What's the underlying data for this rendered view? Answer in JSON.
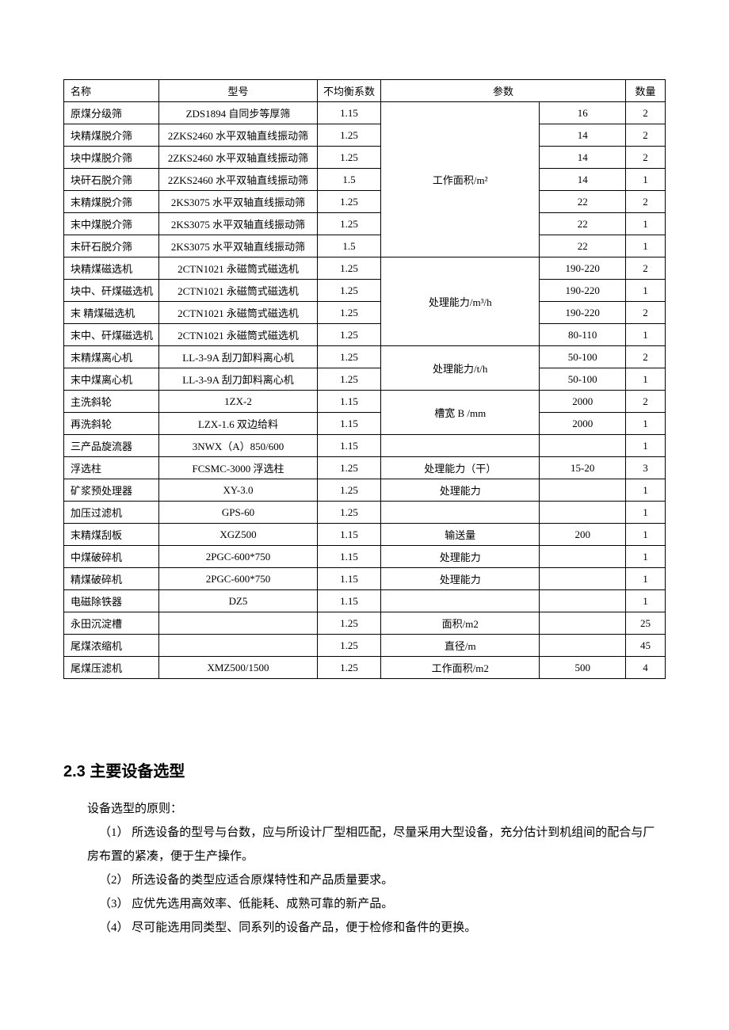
{
  "table": {
    "headers": [
      "名称",
      "型号",
      "不均衡系数",
      "参数",
      "数量"
    ],
    "param_labels": {
      "area": "工作面积/m²",
      "capacity_m3h": "处理能力/m³/h",
      "capacity_th": "处理能力/t/h",
      "width": "槽宽 B /mm",
      "capacity_dry": "处理能力（干）",
      "capacity": "处理能力",
      "transport": "输送量",
      "area_m2": "面积/m2",
      "diameter": "直径/m",
      "work_area": "工作面积/m2"
    },
    "rows": [
      {
        "name": "原煤分级筛",
        "model": "ZDS1894 自同步等厚筛",
        "coef": "1.15",
        "val": "16",
        "qty": "2",
        "pgroup": "area"
      },
      {
        "name": "块精煤脱介筛",
        "model": "2ZKS2460 水平双轴直线振动筛",
        "coef": "1.25",
        "val": "14",
        "qty": "2",
        "pgroup": "area"
      },
      {
        "name": "块中煤脱介筛",
        "model": "2ZKS2460 水平双轴直线振动筛",
        "coef": "1.25",
        "val": "14",
        "qty": "2",
        "pgroup": "area"
      },
      {
        "name": "块矸石脱介筛",
        "model": "2ZKS2460 水平双轴直线振动筛",
        "coef": "1.5",
        "val": "14",
        "qty": "1",
        "pgroup": "area"
      },
      {
        "name": "末精煤脱介筛",
        "model": "2KS3075 水平双轴直线振动筛",
        "coef": "1.25",
        "val": "22",
        "qty": "2",
        "pgroup": "area"
      },
      {
        "name": "末中煤脱介筛",
        "model": "2KS3075 水平双轴直线振动筛",
        "coef": "1.25",
        "val": "22",
        "qty": "1",
        "pgroup": "area"
      },
      {
        "name": "末矸石脱介筛",
        "model": "2KS3075 水平双轴直线振动筛",
        "coef": "1.5",
        "val": "22",
        "qty": "1",
        "pgroup": "area"
      },
      {
        "name": "块精煤磁选机",
        "model": "2CTN1021 永磁筒式磁选机",
        "coef": "1.25",
        "val": "190-220",
        "qty": "2",
        "pgroup": "capacity_m3h"
      },
      {
        "name": "块中、矸煤磁选机",
        "model": "2CTN1021 永磁筒式磁选机",
        "coef": "1.25",
        "val": "190-220",
        "qty": "1",
        "pgroup": "capacity_m3h"
      },
      {
        "name": "末 精煤磁选机",
        "model": "2CTN1021 永磁筒式磁选机",
        "coef": "1.25",
        "val": "190-220",
        "qty": "2",
        "pgroup": "capacity_m3h"
      },
      {
        "name": "末中、矸煤磁选机",
        "model": "2CTN1021 永磁筒式磁选机",
        "coef": "1.25",
        "val": "80-110",
        "qty": "1",
        "pgroup": "capacity_m3h"
      },
      {
        "name": "末精煤离心机",
        "model": "LL-3-9A 刮刀卸料离心机",
        "coef": "1.25",
        "val": "50-100",
        "qty": "2",
        "pgroup": "capacity_th"
      },
      {
        "name": "末中煤离心机",
        "model": "LL-3-9A 刮刀卸料离心机",
        "coef": "1.25",
        "val": "50-100",
        "qty": "1",
        "pgroup": "capacity_th"
      },
      {
        "name": "主洗斜轮",
        "model": "1ZX-2",
        "coef": "1.15",
        "val": "2000",
        "qty": "2",
        "pgroup": "width"
      },
      {
        "name": "再洗斜轮",
        "model": "LZX-1.6 双边给料",
        "coef": "1.15",
        "val": "2000",
        "qty": "1",
        "pgroup": "width"
      },
      {
        "name": "三产品旋流器",
        "model": "3NWX（A）850/600",
        "coef": "1.15",
        "val": "",
        "qty": "1",
        "param": ""
      },
      {
        "name": "浮选柱",
        "model": "FCSMC-3000 浮选柱",
        "coef": "1.25",
        "val": "15-20",
        "qty": "3",
        "param": "capacity_dry"
      },
      {
        "name": "矿浆预处理器",
        "model": "XY-3.0",
        "coef": "1.25",
        "val": "",
        "qty": "1",
        "param": "capacity"
      },
      {
        "name": "加压过滤机",
        "model": "GPS-60",
        "coef": "1.25",
        "val": "",
        "qty": "1",
        "param": ""
      },
      {
        "name": "末精煤刮板",
        "model": "XGZ500",
        "coef": "1.15",
        "val": "200",
        "qty": "1",
        "param": "transport"
      },
      {
        "name": "中煤破碎机",
        "model": "2PGC-600*750",
        "coef": "1.15",
        "val": "",
        "qty": "1",
        "param": "capacity"
      },
      {
        "name": "精煤破碎机",
        "model": "2PGC-600*750",
        "coef": "1.15",
        "val": "",
        "qty": "1",
        "param": "capacity"
      },
      {
        "name": "电磁除铁器",
        "model": "DZ5",
        "coef": "1.15",
        "val": "",
        "qty": "1",
        "param": ""
      },
      {
        "name": "永田沉淀槽",
        "model": "",
        "coef": "1.25",
        "val": "",
        "qty": "25",
        "param": "area_m2"
      },
      {
        "name": "尾煤浓缩机",
        "model": "",
        "coef": "1.25",
        "val": "",
        "qty": "45",
        "param": "diameter"
      },
      {
        "name": "尾煤压滤机",
        "model": "XMZ500/1500",
        "coef": "1.25",
        "val": "500",
        "qty": "4",
        "param": "work_area"
      }
    ]
  },
  "section": {
    "heading": "2.3 主要设备选型",
    "intro": "设备选型的原则：",
    "items": [
      "（1）  所选设备的型号与台数，应与所设计厂型相匹配，尽量采用大型设备，充分估计到机组间的配合与厂房布置的紧凑，便于生产操作。",
      "（2）  所选设备的类型应适合原煤特性和产品质量要求。",
      "（3）  应优先选用高效率、低能耗、成熟可靠的新产品。",
      "（4）  尽可能选用同类型、同系列的设备产品，便于检修和备件的更换。"
    ]
  }
}
